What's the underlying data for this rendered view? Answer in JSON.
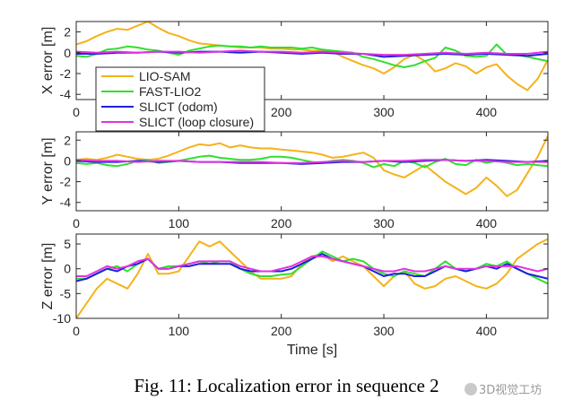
{
  "chart_data": [
    {
      "type": "line",
      "ylabel": "X error [m]",
      "xlim": [
        0,
        460
      ],
      "ylim": [
        -4.5,
        3
      ],
      "yticks": [
        2,
        0,
        -2,
        -4
      ],
      "xticks": [
        0,
        100,
        200,
        300,
        400
      ],
      "grid": false,
      "legend": {
        "placement": "left",
        "entries": [
          "LIO-SAM",
          "FAST-LIO2",
          "SLICT (odom)",
          "SLICT (loop closure)"
        ]
      },
      "series": [
        {
          "name": "LIO-SAM",
          "color": "#f5b21a",
          "x": [
            0,
            10,
            20,
            30,
            40,
            50,
            60,
            70,
            80,
            90,
            100,
            110,
            120,
            130,
            140,
            150,
            160,
            170,
            180,
            190,
            200,
            210,
            220,
            230,
            240,
            250,
            260,
            270,
            280,
            290,
            300,
            310,
            320,
            330,
            340,
            350,
            360,
            370,
            380,
            390,
            400,
            410,
            420,
            430,
            440,
            450,
            460
          ],
          "y": [
            0.8,
            1.1,
            1.6,
            2.0,
            2.3,
            2.2,
            2.6,
            3.0,
            2.4,
            1.9,
            1.6,
            1.2,
            0.9,
            0.8,
            0.7,
            0.6,
            0.5,
            0.5,
            0.5,
            0.4,
            0.4,
            0.3,
            0.3,
            0.2,
            0.2,
            0.1,
            -0.4,
            -0.8,
            -1.2,
            -1.5,
            -2.0,
            -1.4,
            -0.6,
            -0.2,
            -0.8,
            -1.8,
            -1.5,
            -1.0,
            -1.3,
            -2.0,
            -1.4,
            -1.1,
            -2.2,
            -3.0,
            -3.6,
            -2.5,
            -0.7
          ]
        },
        {
          "name": "FAST-LIO2",
          "color": "#2ee02e",
          "x": [
            0,
            10,
            20,
            30,
            40,
            50,
            60,
            70,
            80,
            90,
            100,
            110,
            120,
            130,
            140,
            150,
            160,
            170,
            180,
            190,
            200,
            210,
            220,
            230,
            240,
            250,
            260,
            270,
            280,
            290,
            300,
            310,
            320,
            330,
            340,
            350,
            360,
            370,
            380,
            390,
            400,
            410,
            420,
            430,
            440,
            450,
            460
          ],
          "y": [
            -0.3,
            -0.4,
            -0.1,
            0.3,
            0.4,
            0.6,
            0.5,
            0.3,
            0.2,
            0.0,
            -0.2,
            0.2,
            0.4,
            0.6,
            0.7,
            0.6,
            0.6,
            0.5,
            0.6,
            0.5,
            0.5,
            0.5,
            0.4,
            0.5,
            0.3,
            0.2,
            0.1,
            0.0,
            -0.4,
            -0.6,
            -0.9,
            -1.2,
            -1.4,
            -1.2,
            -0.8,
            -0.5,
            0.5,
            0.2,
            -0.3,
            -0.4,
            -0.3,
            0.8,
            -0.2,
            -0.2,
            -0.4,
            -0.6,
            -0.8
          ]
        },
        {
          "name": "SLICT (odom)",
          "color": "#1f1fe0",
          "x": [
            0,
            20,
            40,
            60,
            80,
            100,
            120,
            140,
            160,
            180,
            200,
            220,
            240,
            260,
            280,
            300,
            320,
            340,
            360,
            380,
            400,
            420,
            440,
            460
          ],
          "y": [
            -0.1,
            -0.1,
            0.0,
            0.0,
            0.1,
            0.0,
            0.1,
            0.1,
            0.0,
            0.1,
            0.0,
            -0.1,
            0.0,
            -0.1,
            -0.1,
            -0.4,
            -0.3,
            -0.2,
            -0.1,
            -0.2,
            -0.1,
            -0.2,
            -0.3,
            -0.1
          ]
        },
        {
          "name": "SLICT (loop closure)",
          "color": "#e033e0",
          "x": [
            0,
            20,
            40,
            60,
            80,
            100,
            120,
            140,
            160,
            180,
            200,
            220,
            240,
            260,
            280,
            300,
            320,
            340,
            360,
            380,
            400,
            420,
            440,
            460
          ],
          "y": [
            0.1,
            0.0,
            0.1,
            0.0,
            0.1,
            0.1,
            0.0,
            0.1,
            0.2,
            0.1,
            0.1,
            0.0,
            0.1,
            0.0,
            -0.1,
            -0.2,
            -0.2,
            -0.1,
            0.0,
            -0.1,
            0.0,
            -0.1,
            -0.1,
            0.1
          ]
        }
      ]
    },
    {
      "type": "line",
      "ylabel": "Y error [m]",
      "xlim": [
        0,
        460
      ],
      "ylim": [
        -4.8,
        2.8
      ],
      "yticks": [
        2,
        0,
        -2,
        -4
      ],
      "xticks": [
        0,
        100,
        200,
        300,
        400
      ],
      "grid": false,
      "series": [
        {
          "name": "LIO-SAM",
          "color": "#f5b21a",
          "x": [
            0,
            10,
            20,
            30,
            40,
            50,
            60,
            70,
            80,
            90,
            100,
            110,
            120,
            130,
            140,
            150,
            160,
            170,
            180,
            190,
            200,
            210,
            220,
            230,
            240,
            250,
            260,
            270,
            280,
            290,
            300,
            310,
            320,
            330,
            340,
            350,
            360,
            370,
            380,
            390,
            400,
            410,
            420,
            430,
            440,
            450,
            460
          ],
          "y": [
            0.1,
            0.2,
            0.1,
            0.3,
            0.6,
            0.4,
            0.2,
            0.1,
            0.2,
            0.5,
            0.9,
            1.3,
            1.6,
            1.5,
            1.7,
            1.3,
            1.5,
            1.3,
            1.2,
            1.2,
            1.1,
            1.0,
            0.9,
            0.8,
            0.6,
            0.3,
            0.4,
            0.6,
            0.8,
            0.3,
            -0.9,
            -1.3,
            -1.6,
            -1.0,
            -0.4,
            -1.2,
            -2.0,
            -2.6,
            -3.2,
            -2.6,
            -1.6,
            -2.4,
            -3.4,
            -2.8,
            -1.2,
            0.4,
            2.4
          ]
        },
        {
          "name": "FAST-LIO2",
          "color": "#2ee02e",
          "x": [
            0,
            10,
            20,
            30,
            40,
            50,
            60,
            70,
            80,
            90,
            100,
            110,
            120,
            130,
            140,
            150,
            160,
            170,
            180,
            190,
            200,
            210,
            220,
            230,
            240,
            250,
            260,
            270,
            280,
            290,
            300,
            310,
            320,
            330,
            340,
            350,
            360,
            370,
            380,
            390,
            400,
            410,
            420,
            430,
            440,
            450,
            460
          ],
          "y": [
            -0.2,
            -0.3,
            -0.2,
            -0.4,
            -0.5,
            -0.3,
            0.0,
            0.1,
            -0.2,
            -0.1,
            0.0,
            0.2,
            0.4,
            0.5,
            0.3,
            0.2,
            0.1,
            0.1,
            0.2,
            0.4,
            0.4,
            0.3,
            0.1,
            -0.1,
            -0.2,
            0.0,
            0.1,
            0.0,
            -0.2,
            -0.6,
            -0.3,
            -0.5,
            0.0,
            -0.2,
            -0.6,
            -0.1,
            0.2,
            -0.3,
            -0.4,
            0.1,
            -0.2,
            0.0,
            -0.2,
            -0.4,
            -0.3,
            -0.4,
            -0.5
          ]
        },
        {
          "name": "SLICT (odom)",
          "color": "#1f1fe0",
          "x": [
            0,
            20,
            40,
            60,
            80,
            100,
            120,
            140,
            160,
            180,
            200,
            220,
            240,
            260,
            280,
            300,
            320,
            340,
            360,
            380,
            400,
            420,
            440,
            460
          ],
          "y": [
            0.0,
            -0.1,
            -0.1,
            0.0,
            -0.1,
            0.0,
            -0.1,
            -0.1,
            -0.2,
            -0.2,
            -0.2,
            -0.3,
            -0.2,
            -0.1,
            -0.1,
            0.0,
            -0.1,
            0.0,
            0.1,
            0.0,
            0.1,
            0.0,
            -0.1,
            0.0
          ]
        },
        {
          "name": "SLICT (loop closure)",
          "color": "#e033e0",
          "x": [
            0,
            20,
            40,
            60,
            80,
            100,
            120,
            140,
            160,
            180,
            200,
            220,
            240,
            260,
            280,
            300,
            320,
            340,
            360,
            380,
            400,
            420,
            440,
            460
          ],
          "y": [
            0.1,
            0.0,
            0.0,
            -0.1,
            0.0,
            0.0,
            -0.1,
            -0.1,
            -0.1,
            -0.1,
            -0.2,
            -0.2,
            -0.1,
            0.0,
            -0.1,
            0.0,
            0.0,
            0.1,
            0.1,
            0.0,
            0.0,
            -0.1,
            -0.1,
            -0.1
          ]
        }
      ]
    },
    {
      "type": "line",
      "ylabel": "Z error [m]",
      "xlabel": "Time [s]",
      "xlim": [
        0,
        460
      ],
      "ylim": [
        -10,
        7
      ],
      "yticks": [
        5,
        0,
        -5,
        -10
      ],
      "xticks": [
        0,
        100,
        200,
        300,
        400
      ],
      "grid": false,
      "series": [
        {
          "name": "LIO-SAM",
          "color": "#f5b21a",
          "x": [
            0,
            10,
            20,
            30,
            40,
            50,
            60,
            70,
            80,
            90,
            100,
            110,
            120,
            130,
            140,
            150,
            160,
            170,
            180,
            190,
            200,
            210,
            220,
            230,
            240,
            250,
            260,
            270,
            280,
            290,
            300,
            310,
            320,
            330,
            340,
            350,
            360,
            370,
            380,
            390,
            400,
            410,
            420,
            430,
            440,
            450,
            460
          ],
          "y": [
            -10,
            -7,
            -4,
            -2,
            -3,
            -4,
            -1,
            3,
            -1,
            -1,
            -0.5,
            2.5,
            5.5,
            4.5,
            5.5,
            3.5,
            1.5,
            -0.5,
            -2,
            -2,
            -2,
            -1.5,
            1,
            2.5,
            3,
            1.5,
            2.5,
            1.5,
            0.5,
            -1.5,
            -3.5,
            -1.5,
            -0.5,
            -3,
            -4,
            -3.5,
            -2,
            -1.5,
            -2.5,
            -3.5,
            -4,
            -3,
            -1,
            2,
            3.5,
            5,
            6
          ]
        },
        {
          "name": "FAST-LIO2",
          "color": "#2ee02e",
          "x": [
            0,
            10,
            20,
            30,
            40,
            50,
            60,
            70,
            80,
            90,
            100,
            110,
            120,
            130,
            140,
            150,
            160,
            170,
            180,
            190,
            200,
            210,
            220,
            230,
            240,
            250,
            260,
            270,
            280,
            290,
            300,
            310,
            320,
            330,
            340,
            350,
            360,
            370,
            380,
            390,
            400,
            410,
            420,
            430,
            440,
            450,
            460
          ],
          "y": [
            -2,
            -2,
            -1,
            0,
            0.5,
            -0.5,
            1,
            2,
            0,
            0.5,
            0.5,
            1,
            1.5,
            1,
            1.5,
            1.5,
            0,
            -1,
            -1.5,
            -1.5,
            -1.2,
            -1,
            0.5,
            2,
            3.5,
            2.5,
            1.5,
            2,
            1.5,
            0,
            -1,
            -1.5,
            -0.5,
            -1,
            -1.5,
            0,
            1.5,
            0,
            -0.5,
            0,
            1,
            0.5,
            1.5,
            0,
            -1,
            -2,
            -3
          ]
        },
        {
          "name": "SLICT (odom)",
          "color": "#1f1fe0",
          "x": [
            0,
            10,
            20,
            30,
            40,
            50,
            60,
            70,
            80,
            90,
            100,
            110,
            120,
            130,
            140,
            150,
            160,
            170,
            180,
            190,
            200,
            210,
            220,
            230,
            240,
            250,
            260,
            270,
            280,
            290,
            300,
            310,
            320,
            330,
            340,
            350,
            360,
            370,
            380,
            390,
            400,
            410,
            420,
            430,
            440,
            450,
            460
          ],
          "y": [
            -2.5,
            -2,
            -1,
            0,
            -0.5,
            0.5,
            1,
            2,
            0,
            0,
            0.5,
            0.5,
            1,
            1,
            1,
            1,
            0,
            -0.5,
            -0.5,
            -0.5,
            -0.5,
            0,
            1,
            2,
            3,
            2,
            1.5,
            1,
            0.5,
            -0.5,
            -1.5,
            -1,
            -1,
            -1.5,
            -1.5,
            -0.5,
            0.5,
            0,
            -0.5,
            0,
            0.5,
            0,
            1,
            0,
            -1,
            -1.5,
            -2
          ]
        },
        {
          "name": "SLICT (loop closure)",
          "color": "#e033e0",
          "x": [
            0,
            10,
            20,
            30,
            40,
            50,
            60,
            70,
            80,
            90,
            100,
            110,
            120,
            130,
            140,
            150,
            160,
            170,
            180,
            190,
            200,
            210,
            220,
            230,
            240,
            250,
            260,
            270,
            280,
            290,
            300,
            310,
            320,
            330,
            340,
            350,
            360,
            370,
            380,
            390,
            400,
            410,
            420,
            430,
            440,
            450,
            460
          ],
          "y": [
            -1.5,
            -1.5,
            -0.5,
            0.5,
            0,
            0.5,
            1.5,
            2,
            0,
            0,
            0.5,
            1,
            1.5,
            1.5,
            1.5,
            1.5,
            0.5,
            0,
            -0.5,
            -0.5,
            0,
            0.5,
            1.5,
            2.5,
            2.5,
            2,
            1.5,
            1,
            0.5,
            0,
            -0.5,
            -0.5,
            0,
            -0.5,
            -0.5,
            0,
            0.5,
            0,
            0,
            0,
            0.5,
            0.5,
            0.5,
            0.5,
            0,
            -0.5,
            0
          ]
        }
      ]
    }
  ],
  "caption": "Fig. 11: Localization error in sequence 2",
  "watermark": "3D视觉工坊"
}
